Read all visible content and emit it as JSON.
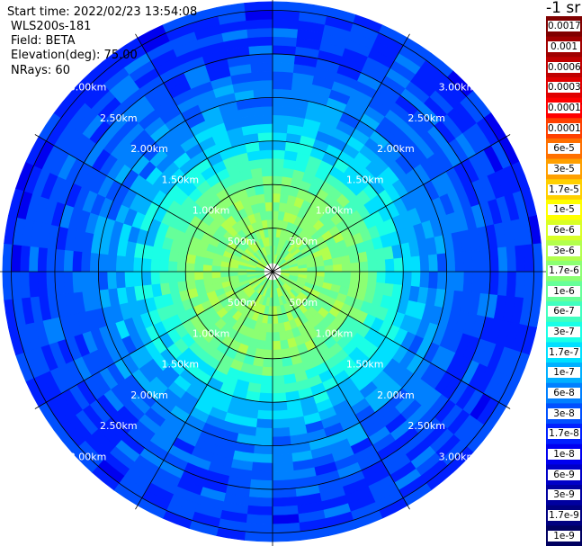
{
  "header": {
    "start_time": "Start time: 2022/02/23 13:54:08",
    "site": "WLS200s-181",
    "field": "Field: BETA",
    "elevation": "Elevation(deg): 75.00",
    "nrays": "NRays: 60"
  },
  "colorbar": {
    "units": "-1 sr",
    "labels": [
      "0.0017",
      "0.001",
      "0.0006",
      "0.0003",
      "0.00017",
      "0.0001",
      "6e-5",
      "3e-5",
      "1.7e-5",
      "1e-5",
      "6e-6",
      "3e-6",
      "1.7e-6",
      "1e-6",
      "6e-7",
      "3e-7",
      "1.7e-7",
      "1e-7",
      "6e-8",
      "3e-8",
      "1.7e-8",
      "1e-8",
      "6e-9",
      "3e-9",
      "1.7e-9",
      "1e-9"
    ],
    "colors": [
      "#800000",
      "#a00000",
      "#c00000",
      "#e00000",
      "#ff0000",
      "#ff4000",
      "#ff7000",
      "#ffa000",
      "#ffd000",
      "#ffff00",
      "#d9ff26",
      "#b3ff4d",
      "#8cff73",
      "#66ff99",
      "#40ffbf",
      "#1affe6",
      "#00e0ff",
      "#00b0ff",
      "#0080ff",
      "#0050ff",
      "#0020ff",
      "#0000f0",
      "#0000c8",
      "#0000a0",
      "#000080",
      "#000060"
    ]
  },
  "chart_data": {
    "type": "heatmap",
    "projection": "polar-ppi",
    "nrays": 60,
    "azimuth_spokes_deg": [
      0,
      30,
      60,
      90,
      120,
      150,
      180,
      210,
      240,
      270,
      300,
      330
    ],
    "range_rings_km": [
      0.5,
      1.0,
      1.5,
      2.0,
      2.5,
      3.0
    ],
    "ring_labels": [
      "500m",
      "1.00km",
      "1.50km",
      "2.00km",
      "2.50km",
      "3.00km"
    ],
    "max_range_km": 3.15,
    "gate_km": 0.1,
    "field": "BETA",
    "beta_radial_profile": [
      {
        "range_km": 0.1,
        "beta": 1.7e-06
      },
      {
        "range_km": 0.5,
        "beta": 1.7e-06
      },
      {
        "range_km": 0.9,
        "beta": 1.5e-06
      },
      {
        "range_km": 1.1,
        "beta": 1e-06
      },
      {
        "range_km": 1.3,
        "beta": 4e-07
      },
      {
        "range_km": 1.5,
        "beta": 1.7e-07
      },
      {
        "range_km": 1.8,
        "beta": 8e-08
      },
      {
        "range_km": 2.1,
        "beta": 5e-08
      },
      {
        "range_km": 2.5,
        "beta": 3e-08
      },
      {
        "range_km": 3.15,
        "beta": 2e-08
      }
    ],
    "colorbar_range": [
      1e-09,
      0.0017
    ]
  }
}
